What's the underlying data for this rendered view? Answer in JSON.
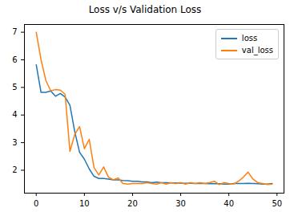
{
  "chart_data": {
    "type": "line",
    "title": "Loss v/s Validation Loss",
    "x": [
      0,
      1,
      2,
      3,
      4,
      5,
      6,
      7,
      8,
      9,
      10,
      11,
      12,
      13,
      14,
      15,
      16,
      17,
      18,
      19,
      20,
      21,
      22,
      23,
      24,
      25,
      26,
      27,
      28,
      29,
      30,
      31,
      32,
      33,
      34,
      35,
      36,
      37,
      38,
      39,
      40,
      41,
      42,
      43,
      44,
      45,
      46,
      47,
      48,
      49
    ],
    "series": [
      {
        "name": "loss",
        "color": "#1f77b4",
        "values": [
          5.82,
          4.82,
          4.82,
          4.87,
          4.68,
          4.78,
          4.65,
          4.35,
          3.4,
          2.65,
          2.4,
          2.05,
          1.78,
          1.7,
          1.7,
          1.68,
          1.65,
          1.65,
          1.63,
          1.62,
          1.6,
          1.6,
          1.58,
          1.58,
          1.55,
          1.57,
          1.55,
          1.55,
          1.54,
          1.54,
          1.53,
          1.53,
          1.53,
          1.52,
          1.52,
          1.52,
          1.51,
          1.51,
          1.51,
          1.5,
          1.5,
          1.52,
          1.52,
          1.52,
          1.53,
          1.52,
          1.51,
          1.5,
          1.5,
          1.52
        ]
      },
      {
        "name": "val_loss",
        "color": "#ff7f0e",
        "values": [
          7.0,
          6.0,
          5.25,
          4.88,
          4.92,
          4.9,
          4.75,
          2.68,
          3.3,
          3.58,
          2.78,
          3.12,
          2.1,
          1.83,
          2.12,
          1.75,
          1.65,
          1.72,
          1.52,
          1.5,
          1.52,
          1.52,
          1.52,
          1.55,
          1.52,
          1.5,
          1.55,
          1.5,
          1.55,
          1.52,
          1.55,
          1.5,
          1.55,
          1.52,
          1.55,
          1.52,
          1.55,
          1.6,
          1.48,
          1.55,
          1.52,
          1.5,
          1.6,
          1.75,
          1.93,
          1.68,
          1.55,
          1.52,
          1.48,
          1.5
        ]
      }
    ],
    "xlim": [
      -2.45,
      51.45
    ],
    "ylim": [
      1.17,
      7.28
    ],
    "xticks": [
      0,
      10,
      20,
      30,
      40,
      50
    ],
    "yticks": [
      2,
      3,
      4,
      5,
      6,
      7
    ],
    "grid": false,
    "legend": "upper right"
  }
}
